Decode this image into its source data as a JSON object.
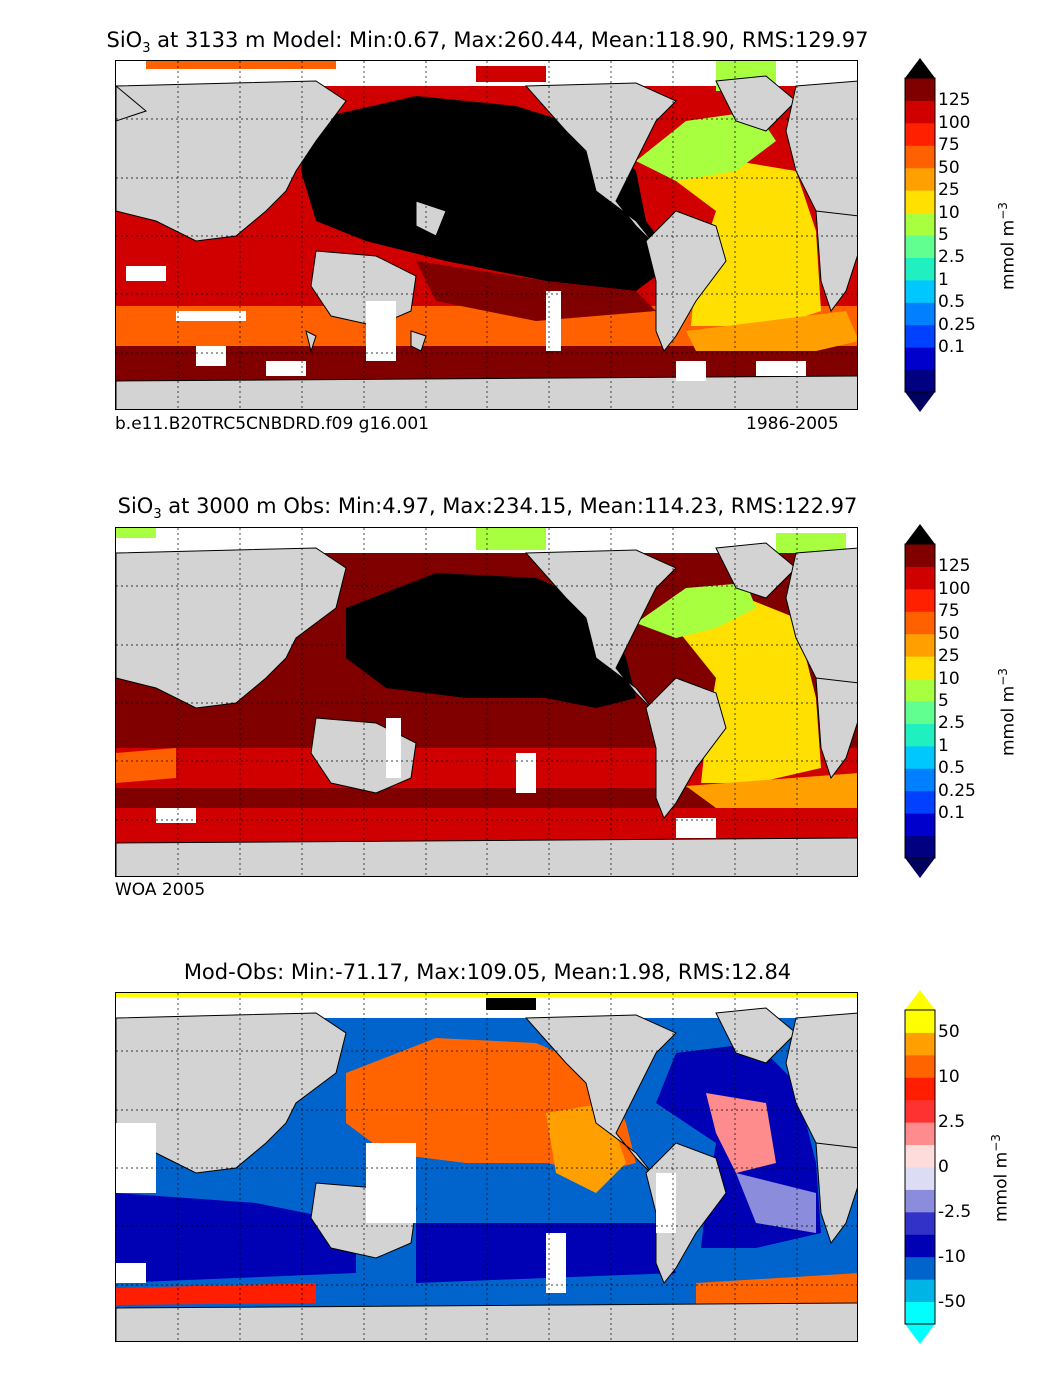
{
  "panels": [
    {
      "id": "model",
      "title_prefix": "SiO",
      "title_sub": "3",
      "title_rest": " at 3133 m Model: Min:0.67, Max:260.44, Mean:118.90, RMS:129.97",
      "subtitle_left": "b.e11.B20TRC5CNBDRD.f09 g16.001",
      "subtitle_right": "1986-2005"
    },
    {
      "id": "obs",
      "title_prefix": "SiO",
      "title_sub": "3",
      "title_rest": " at 3000 m Obs: Min:4.97, Max:234.15, Mean:114.23, RMS:122.97",
      "subtitle_left": "WOA 2005",
      "subtitle_right": ""
    },
    {
      "id": "diff",
      "title_prefix": "",
      "title_sub": "",
      "title_rest": "Mod-Obs: Min:-71.17, Max:109.05, Mean:1.98, RMS:12.84",
      "subtitle_left": "",
      "subtitle_right": ""
    }
  ],
  "colorbar_main": {
    "unit_label": "mmol m",
    "unit_sup": "−3",
    "ticks": [
      "125",
      "100",
      "75",
      "50",
      "25",
      "10",
      "5",
      "2.5",
      "1",
      "0.5",
      "0.25",
      "0.1"
    ],
    "colors": [
      "#000080",
      "#0000cd",
      "#0040ff",
      "#0080ff",
      "#00c8ff",
      "#20f0c0",
      "#60ff90",
      "#a8ff40",
      "#ffe000",
      "#ffa000",
      "#ff6000",
      "#ff2000",
      "#d00000",
      "#800000"
    ],
    "over_color": "#000000",
    "under_color": "#000060"
  },
  "colorbar_diff": {
    "unit_label": "mmol m",
    "unit_sup": "−3",
    "ticks": [
      "50",
      "10",
      "2.5",
      "0",
      "-2.5",
      "-10",
      "-50"
    ],
    "colors": [
      "#00ffff",
      "#00b4e6",
      "#0064cc",
      "#0000b4",
      "#3232c8",
      "#8c8cdc",
      "#dcdcf5",
      "#ffdcdc",
      "#ff8c8c",
      "#ff3232",
      "#ff1e00",
      "#ff6400",
      "#ffa000",
      "#ffff00"
    ]
  },
  "chart_data": [
    {
      "type": "heatmap",
      "title": "SiO3 at 3133 m Model: Min:0.67, Max:260.44, Mean:118.90, RMS:129.97",
      "variable": "SiO3",
      "depth_m": 3133,
      "stats": {
        "min": 0.67,
        "max": 260.44,
        "mean": 118.9,
        "rms": 129.97
      },
      "colorbar_levels": [
        0.1,
        0.25,
        0.5,
        1,
        2.5,
        5,
        10,
        25,
        50,
        75,
        100,
        125
      ],
      "unit": "mmol m-3"
    },
    {
      "type": "heatmap",
      "title": "SiO3 at 3000 m Obs: Min:4.97, Max:234.15, Mean:114.23, RMS:122.97",
      "variable": "SiO3",
      "depth_m": 3000,
      "stats": {
        "min": 4.97,
        "max": 234.15,
        "mean": 114.23,
        "rms": 122.97
      },
      "colorbar_levels": [
        0.1,
        0.25,
        0.5,
        1,
        2.5,
        5,
        10,
        25,
        50,
        75,
        100,
        125
      ],
      "unit": "mmol m-3"
    },
    {
      "type": "heatmap",
      "title": "Mod-Obs: Min:-71.17, Max:109.05, Mean:1.98, RMS:12.84",
      "stats": {
        "min": -71.17,
        "max": 109.05,
        "mean": 1.98,
        "rms": 12.84
      },
      "colorbar_levels": [
        -50,
        -10,
        -2.5,
        0,
        2.5,
        10,
        50
      ],
      "unit": "mmol m-3"
    }
  ]
}
